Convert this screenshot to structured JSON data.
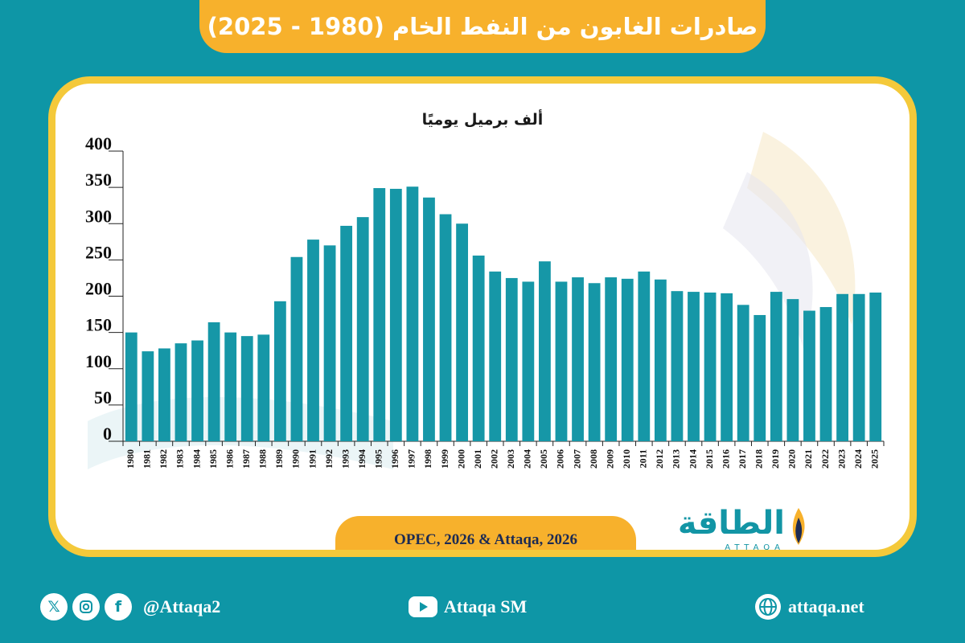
{
  "header": {
    "title": "صادرات الغابون من النفط الخام (1980 - 2025)"
  },
  "chart_data": {
    "type": "bar",
    "title": "صادرات الغابون من النفط الخام (1980 - 2025)",
    "ylabel": "ألف برميل يوميًا",
    "xlabel": "",
    "ylim": [
      0,
      400
    ],
    "yticks": [
      0,
      50,
      100,
      150,
      200,
      250,
      300,
      350,
      400
    ],
    "categories": [
      "1980",
      "1981",
      "1982",
      "1983",
      "1984",
      "1985",
      "1986",
      "1987",
      "1988",
      "1989",
      "1990",
      "1991",
      "1992",
      "1993",
      "1994",
      "1995",
      "1996",
      "1997",
      "1998",
      "1999",
      "2000",
      "2001",
      "2002",
      "2003",
      "2004",
      "2005",
      "2006",
      "2007",
      "2008",
      "2009",
      "2010",
      "2011",
      "2012",
      "2013",
      "2014",
      "2015",
      "2016",
      "2017",
      "2018",
      "2019",
      "2020",
      "2021",
      "2022",
      "2023",
      "2024",
      "2025"
    ],
    "values": [
      150,
      124,
      128,
      135,
      139,
      164,
      150,
      145,
      147,
      193,
      254,
      278,
      270,
      297,
      309,
      349,
      348,
      351,
      336,
      313,
      300,
      256,
      234,
      225,
      220,
      248,
      220,
      226,
      218,
      226,
      224,
      234,
      223,
      207,
      206,
      205,
      204,
      188,
      174,
      206,
      196,
      180,
      185,
      203,
      203,
      205
    ],
    "bar_color": "#1697a7",
    "grid": false,
    "legend": "none"
  },
  "source": {
    "text": "OPEC, 2026 & Attaqa, 2026"
  },
  "logo": {
    "arabic": "الطاقة",
    "latin": "ATTAQA"
  },
  "footer": {
    "social_handle": "@Attaqa2",
    "youtube": "Attaqa SM",
    "website": "attaqa.net"
  },
  "colors": {
    "background": "#0e96a6",
    "accent": "#f7b12c",
    "card_border": "#f4c93a",
    "bars": "#1697a7"
  },
  "icons": [
    "x-icon",
    "instagram-icon",
    "facebook-icon",
    "youtube-icon",
    "globe-icon"
  ]
}
